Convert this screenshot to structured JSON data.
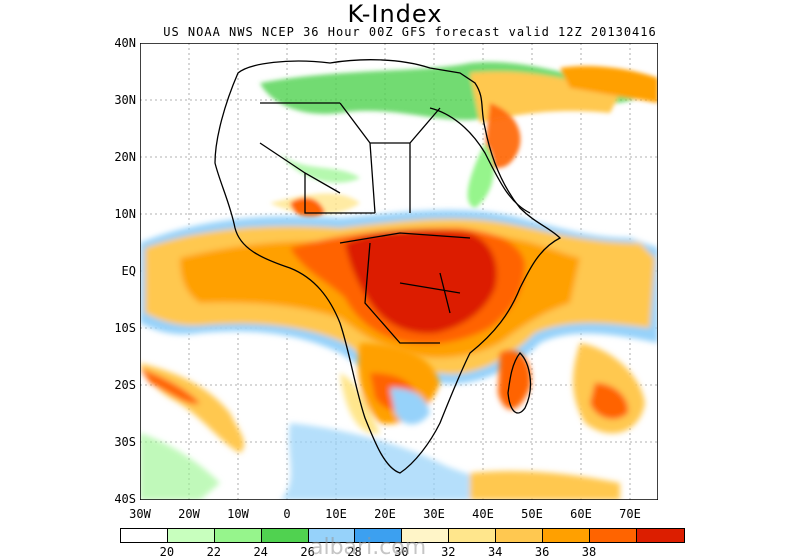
{
  "title": "K-Index",
  "subtitle": "US NOAA NWS NCEP 36 Hour 00Z GFS forecast valid 12Z 20130416",
  "y_labels": [
    "40N",
    "30N",
    "20N",
    "10N",
    "EQ",
    "10S",
    "20S",
    "30S",
    "40S"
  ],
  "x_labels": [
    "30W",
    "20W",
    "10W",
    "0",
    "10E",
    "20E",
    "30E",
    "40E",
    "50E",
    "60E",
    "70E"
  ],
  "colorbar": {
    "colors": [
      "#ffffff",
      "#c8ffbe",
      "#96f58c",
      "#50d250",
      "#96d2fa",
      "#3ca0f0",
      "#fff5c8",
      "#ffe68c",
      "#ffc850",
      "#ffa000",
      "#ff6400",
      "#dc1e00"
    ],
    "labels": [
      "20",
      "22",
      "24",
      "26",
      "28",
      "30",
      "32",
      "34",
      "36",
      "38"
    ]
  },
  "watermark": "albari.com",
  "palette": {
    "light_green": "#c8ffbe",
    "green": "#50d250",
    "light_blue": "#96d2fa",
    "blue": "#3ca0f0",
    "pale_yellow": "#fff5c8",
    "yellow": "#ffe68c",
    "light_orange": "#ffc850",
    "orange": "#ffa000",
    "dark_orange": "#ff6400",
    "red": "#dc1e00"
  }
}
